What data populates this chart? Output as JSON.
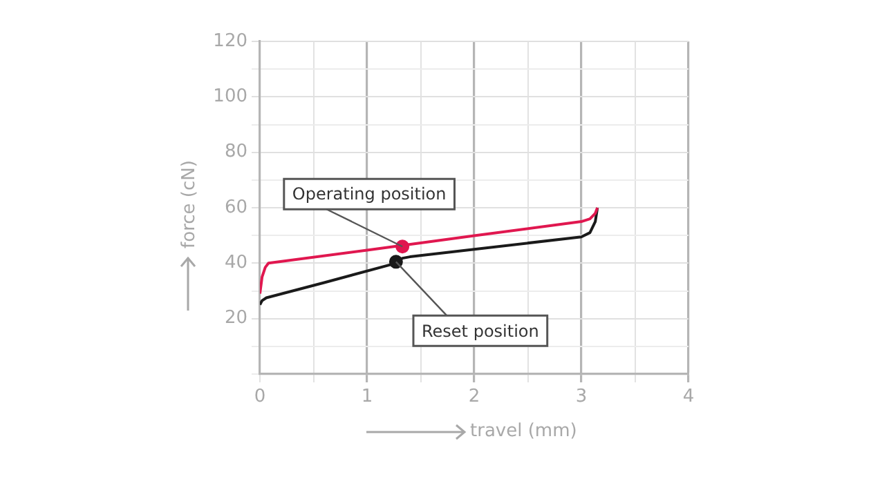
{
  "chart_data": {
    "type": "line",
    "xlabel": "travel (mm)",
    "ylabel": "force (cN)",
    "xlim": [
      0,
      4
    ],
    "xticks": [
      0,
      {
        "value": 0.5,
        "label": null
      },
      1,
      {
        "value": 1.5,
        "label": null
      },
      2,
      {
        "value": 2.5,
        "label": null
      },
      3,
      {
        "value": 3.5,
        "label": null
      },
      4
    ],
    "ylim": [
      0,
      120
    ],
    "yticks": [
      {
        "value": 0,
        "label": null
      },
      {
        "value": 10,
        "label": null
      },
      20,
      {
        "value": 30,
        "label": null
      },
      40,
      {
        "value": 50,
        "label": null
      },
      60,
      {
        "value": 70,
        "label": null
      },
      80,
      {
        "value": 90,
        "label": null
      },
      100,
      {
        "value": 110,
        "label": null
      },
      120
    ],
    "grid": true,
    "legend": false,
    "marker": "none",
    "line_style": "solid",
    "series": [
      {
        "color": "#e0174f",
        "x": [
          0,
          0.02,
          0.05,
          0.08,
          1.0,
          2.0,
          3.0,
          3.08,
          3.13,
          3.15
        ],
        "values": [
          29,
          35,
          38.5,
          40,
          44.7,
          49.9,
          55,
          56,
          58,
          60
        ]
      },
      {
        "color": "#1a1a1a",
        "x": [
          0,
          0.02,
          0.06,
          0.6,
          1.27,
          1.33,
          1.4,
          2.0,
          3.0,
          3.08,
          3.13,
          3.15
        ],
        "values": [
          25,
          26.5,
          27.5,
          33,
          40,
          41.8,
          42.3,
          45,
          49.5,
          51,
          55,
          60
        ]
      },
      {
        "type": "scatter",
        "color": "#e0174f",
        "marker": "circle",
        "x": [
          1.33
        ],
        "values": [
          46
        ]
      },
      {
        "type": "scatter",
        "color": "#1a1a1a",
        "marker": "circle",
        "x": [
          1.27
        ],
        "values": [
          40.5
        ]
      }
    ],
    "annotations": [
      {
        "text": "Operating position",
        "x": 1.33,
        "y": 46
      },
      {
        "text": "Reset position",
        "x": 1.27,
        "y": 40.5
      }
    ]
  }
}
